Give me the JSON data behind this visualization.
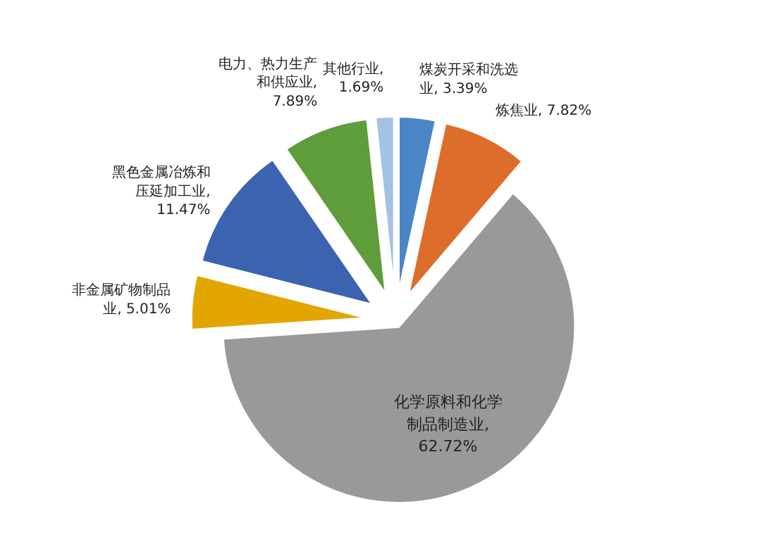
{
  "chart_data": {
    "type": "pie",
    "categories": [
      "煤炭开采和洗选业",
      "炼焦业",
      "化学原料和化学制品制造业",
      "非金属矿物制品业",
      "黑色金属冶炼和压延加工业",
      "电力、热力生产和供应业",
      "其他行业"
    ],
    "values": [
      3.39,
      7.82,
      62.72,
      5.01,
      11.47,
      7.89,
      1.69
    ],
    "value_labels": [
      ", 3.39%",
      ", 7.82%",
      ", 62.72%",
      ", 5.01%",
      ", 11.47%",
      ", 7.89%",
      ", 1.69%"
    ],
    "colors": [
      "#4a86c6",
      "#dd6d2a",
      "#999999",
      "#e3a600",
      "#3b63b0",
      "#5f9c3b",
      "#a3c2e4"
    ]
  }
}
